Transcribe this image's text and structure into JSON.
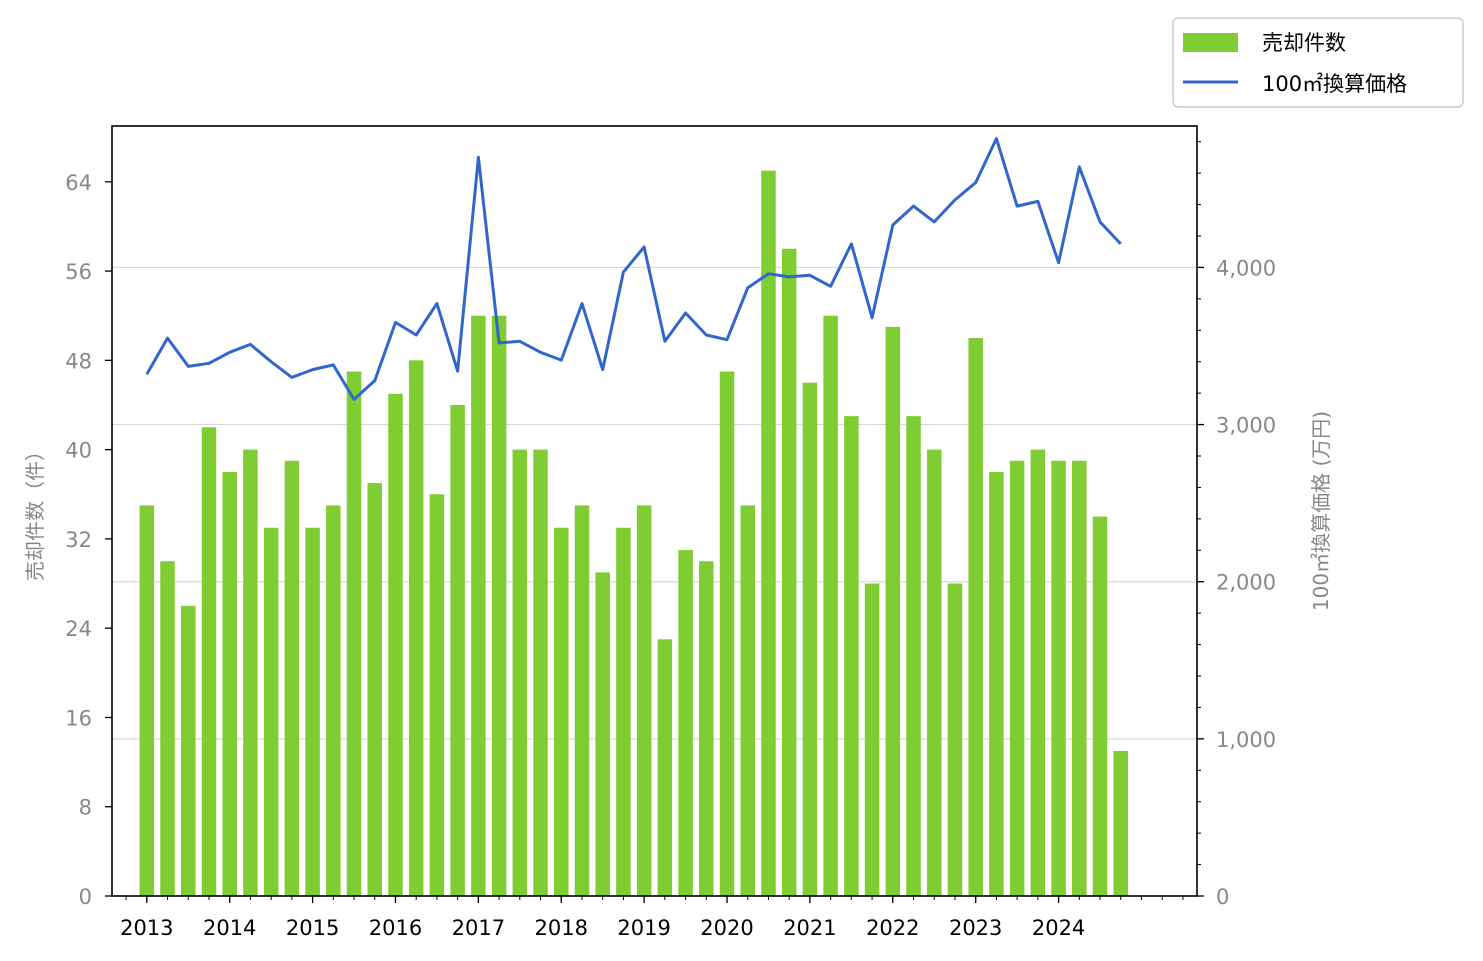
{
  "chart_data": {
    "type": "bar+line",
    "title": "",
    "x": [
      2013.0,
      2013.25,
      2013.5,
      2013.75,
      2014.0,
      2014.25,
      2014.5,
      2014.75,
      2015.0,
      2015.25,
      2015.5,
      2015.75,
      2016.0,
      2016.25,
      2016.5,
      2016.75,
      2017.0,
      2017.25,
      2017.5,
      2017.75,
      2018.0,
      2018.25,
      2018.5,
      2018.75,
      2019.0,
      2019.25,
      2019.5,
      2019.75,
      2020.0,
      2020.25,
      2020.5,
      2020.75,
      2021.0,
      2021.25,
      2021.5,
      2021.75,
      2022.0,
      2022.25,
      2022.5,
      2022.75,
      2023.0,
      2023.25,
      2023.5,
      2023.75,
      2024.0,
      2024.25,
      2024.5,
      2024.75
    ],
    "xticks": [
      2013,
      2014,
      2015,
      2016,
      2017,
      2018,
      2019,
      2020,
      2021,
      2022,
      2023,
      2024
    ],
    "xtick_labels": [
      "2013",
      "2014",
      "2015",
      "2016",
      "2017",
      "2018",
      "2019",
      "2020",
      "2021",
      "2022",
      "2023",
      "2024"
    ],
    "xlim": [
      2012.58,
      2025.67
    ],
    "series": [
      {
        "name": "売却件数",
        "kind": "bar",
        "axis": "left",
        "color": "#80cc33",
        "values": [
          35,
          30,
          26,
          42,
          38,
          40,
          33,
          39,
          33,
          35,
          47,
          37,
          45,
          48,
          36,
          44,
          52,
          52,
          40,
          40,
          33,
          35,
          29,
          33,
          35,
          23,
          31,
          30,
          47,
          35,
          65,
          58,
          46,
          52,
          43,
          28,
          51,
          43,
          40,
          28,
          50,
          38,
          39,
          40,
          39,
          39,
          34,
          13
        ]
      },
      {
        "name": "100㎡換算価格",
        "kind": "line",
        "axis": "right",
        "color": "#3366cc",
        "values": [
          3320,
          3550,
          3370,
          3390,
          3460,
          3510,
          3400,
          3300,
          3350,
          3380,
          3160,
          3280,
          3650,
          3570,
          3770,
          3340,
          4700,
          3520,
          3530,
          3460,
          3410,
          3770,
          3350,
          3970,
          4130,
          3530,
          3710,
          3570,
          3540,
          3870,
          3960,
          3940,
          3950,
          3880,
          4150,
          3680,
          4270,
          4390,
          4290,
          4430,
          4540,
          4820,
          4390,
          4420,
          4030,
          4640,
          4290,
          4150
        ]
      }
    ],
    "y_left": {
      "label": "売却件数（件）",
      "lim": [
        0,
        69
      ],
      "ticks": [
        0,
        8,
        16,
        24,
        32,
        40,
        48,
        56,
        64
      ],
      "tick_labels": [
        "0",
        "8",
        "16",
        "24",
        "32",
        "40",
        "48",
        "56",
        "64"
      ]
    },
    "y_right": {
      "label": "100㎡換算価格 (万円)",
      "lim": [
        0,
        4900
      ],
      "ticks": [
        0,
        1000,
        2000,
        3000,
        4000
      ],
      "tick_labels": [
        "0",
        "1,000",
        "2,000",
        "3,000",
        "4,000"
      ],
      "minor_step": 200
    },
    "grid": "horizontal-right-axis",
    "legend": "top-right-outside"
  }
}
